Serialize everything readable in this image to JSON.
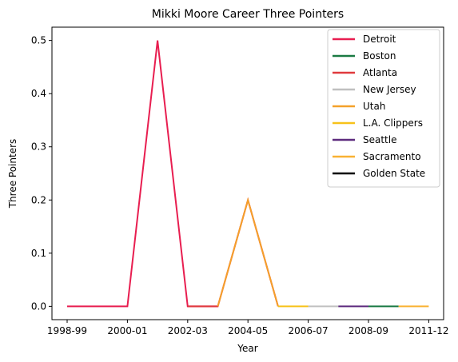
{
  "chart_data": {
    "type": "line",
    "title": "Mikki Moore Career Three Pointers",
    "xlabel": "Year",
    "ylabel": "Three Pointers",
    "x_tick_labels": [
      "1998-99",
      "2000-01",
      "2002-03",
      "2004-05",
      "2006-07",
      "2008-09",
      "2011-12"
    ],
    "ylim": [
      -0.025,
      0.525
    ],
    "y_ticks": [
      0.0,
      0.1,
      0.2,
      0.3,
      0.4,
      0.5
    ],
    "y_tick_labels": [
      "0.0",
      "0.1",
      "0.2",
      "0.3",
      "0.4",
      "0.5"
    ],
    "legend_position": "top-right",
    "grid": false,
    "series": [
      {
        "name": "Detroit",
        "color": "#e81e50",
        "points": [
          [
            0,
            0.0
          ],
          [
            1,
            0.0
          ],
          [
            2,
            0.0
          ],
          [
            3,
            0.5
          ],
          [
            4,
            0.0
          ],
          [
            5,
            0.0
          ],
          [
            6,
            0.2
          ],
          [
            7,
            0.0
          ]
        ]
      },
      {
        "name": "Boston",
        "color": "#1a7a43",
        "points": [
          [
            10,
            0.0
          ],
          [
            11,
            0.0
          ]
        ]
      },
      {
        "name": "Atlanta",
        "color": "#e03a3e",
        "points": [
          [
            4,
            0.0
          ],
          [
            5,
            0.0
          ]
        ]
      },
      {
        "name": "New Jersey",
        "color": "#c0c0c0",
        "points": [
          [
            8,
            0.0
          ],
          [
            9,
            0.0
          ]
        ]
      },
      {
        "name": "Utah",
        "color": "#f4a12a",
        "points": [
          [
            5,
            0.0
          ],
          [
            6,
            0.2
          ],
          [
            7,
            0.0
          ]
        ]
      },
      {
        "name": "L.A. Clippers",
        "color": "#f7c21a",
        "points": [
          [
            7,
            0.0
          ],
          [
            8,
            0.0
          ]
        ]
      },
      {
        "name": "Seattle",
        "color": "#5e2b7e",
        "points": [
          [
            9,
            0.0
          ],
          [
            10,
            0.0
          ]
        ]
      },
      {
        "name": "Sacramento",
        "color": "#f9b233",
        "points": [
          [
            11,
            0.0
          ],
          [
            12,
            0.0
          ]
        ]
      },
      {
        "name": "Golden State",
        "color": "#000000",
        "points": []
      }
    ]
  }
}
